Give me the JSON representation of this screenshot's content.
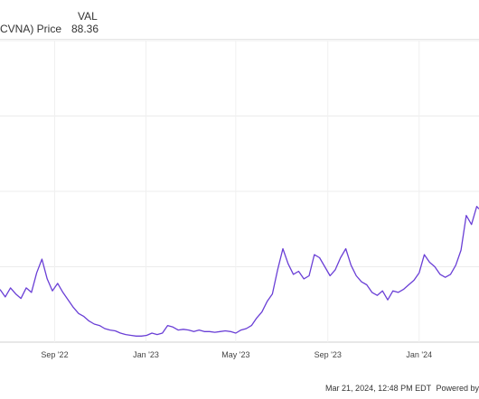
{
  "legend": {
    "header": "VAL",
    "series_label": "CVNA) Price",
    "value": "88.36"
  },
  "footer": {
    "timestamp": "Mar 21, 2024, 12:48 PM EDT",
    "powered": "Powered by"
  },
  "chart_data": {
    "type": "line",
    "title": "",
    "xlabel": "",
    "ylabel": "",
    "x_tick_labels": [
      "Sep '22",
      "Jan '23",
      "May '23",
      "Sep '23",
      "Jan '24"
    ],
    "color": "#6a3fd6",
    "grid": true,
    "series": [
      {
        "name": "CVNA) Price",
        "x": [
          "2022-06-20",
          "2022-06-27",
          "2022-07-04",
          "2022-07-11",
          "2022-07-18",
          "2022-07-25",
          "2022-08-01",
          "2022-08-08",
          "2022-08-15",
          "2022-08-22",
          "2022-08-29",
          "2022-09-05",
          "2022-09-12",
          "2022-09-19",
          "2022-09-26",
          "2022-10-03",
          "2022-10-10",
          "2022-10-17",
          "2022-10-24",
          "2022-10-31",
          "2022-11-07",
          "2022-11-14",
          "2022-11-21",
          "2022-11-28",
          "2022-12-05",
          "2022-12-12",
          "2022-12-19",
          "2022-12-26",
          "2023-01-02",
          "2023-01-09",
          "2023-01-16",
          "2023-01-23",
          "2023-01-30",
          "2023-02-06",
          "2023-02-13",
          "2023-02-20",
          "2023-02-27",
          "2023-03-06",
          "2023-03-13",
          "2023-03-20",
          "2023-03-27",
          "2023-04-03",
          "2023-04-10",
          "2023-04-17",
          "2023-04-24",
          "2023-05-01",
          "2023-05-08",
          "2023-05-15",
          "2023-05-22",
          "2023-05-29",
          "2023-06-05",
          "2023-06-12",
          "2023-06-19",
          "2023-06-26",
          "2023-07-03",
          "2023-07-10",
          "2023-07-17",
          "2023-07-24",
          "2023-07-31",
          "2023-08-07",
          "2023-08-14",
          "2023-08-21",
          "2023-08-28",
          "2023-09-04",
          "2023-09-11",
          "2023-09-18",
          "2023-09-25",
          "2023-10-02",
          "2023-10-09",
          "2023-10-16",
          "2023-10-23",
          "2023-10-30",
          "2023-11-06",
          "2023-11-13",
          "2023-11-20",
          "2023-11-27",
          "2023-12-04",
          "2023-12-11",
          "2023-12-18",
          "2023-12-25",
          "2024-01-01",
          "2024-01-08",
          "2024-01-15",
          "2024-01-22",
          "2024-01-29",
          "2024-02-05",
          "2024-02-12",
          "2024-02-19",
          "2024-02-26",
          "2024-03-04",
          "2024-03-11",
          "2024-03-18",
          "2024-03-21"
        ],
        "y": [
          35,
          30,
          36,
          32,
          29,
          36,
          33,
          46,
          55,
          42,
          34,
          39,
          33,
          28,
          23,
          19,
          17,
          14,
          12,
          11,
          9,
          8,
          7.5,
          6,
          5,
          4.5,
          4,
          4,
          4.5,
          6,
          5,
          6,
          11,
          10,
          8,
          8.5,
          8,
          7,
          8,
          7,
          7,
          6.5,
          7,
          7.5,
          7,
          6,
          8,
          9,
          11,
          16,
          20,
          27,
          32,
          48,
          62,
          52,
          45,
          47,
          42,
          44,
          58,
          56,
          50,
          44,
          48,
          56,
          62,
          51,
          44,
          40,
          38,
          33,
          31,
          34,
          28,
          34,
          33,
          35,
          38,
          41,
          46,
          58,
          53,
          50,
          45,
          43,
          45,
          51,
          61,
          84,
          78,
          90,
          88.36
        ]
      }
    ],
    "ylim": [
      0,
      200
    ]
  }
}
